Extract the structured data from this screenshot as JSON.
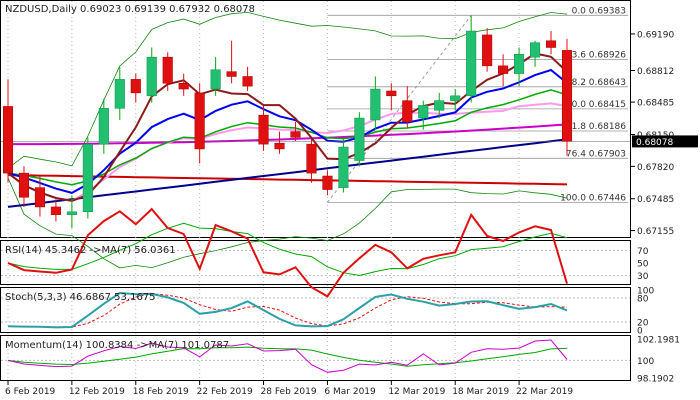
{
  "colors": {
    "up": "#20c070",
    "down": "#e01010",
    "sma_red": "#cc0000",
    "sma_blue": "#00008b",
    "sma_magenta": "#cc00cc",
    "pink": "#ff99ee",
    "bb": "#118811",
    "ema_blue": "#0000ee",
    "ema_green": "#00aa00",
    "brown": "#8b1a1a",
    "teal": "#2aa0a8",
    "grid": "#bbbbbb",
    "fib_line": "#999999",
    "last_box_bg": "#000000",
    "last_box_fg": "#ffffff"
  },
  "main_panel": {
    "header": "NZDUSD,Daily  0.69023 0.69139 0.67932 0.68078",
    "last_price_label": "0.68078",
    "last_price": 0.68078,
    "price_axis_labels": [
      "0.69190",
      "0.68812",
      "0.68485",
      "0.68150",
      "0.67820",
      "0.67485",
      "0.67155"
    ],
    "price_axis_values": [
      0.6919,
      0.68812,
      0.68485,
      0.6815,
      0.6782,
      0.67485,
      0.67155
    ],
    "fib_levels": [
      {
        "label": "0.0 0.69383",
        "price": 0.69383
      },
      {
        "label": "23.6 0.68926",
        "price": 0.68926
      },
      {
        "label": "38.2 0.68643",
        "price": 0.68643
      },
      {
        "label": "50.0 0.68415",
        "price": 0.68415
      },
      {
        "label": "61.8 0.68186",
        "price": 0.68186
      },
      {
        "label": "76.4 0.67903",
        "price": 0.67903
      },
      {
        "label": "100.0 0.67446",
        "price": 0.67446
      }
    ]
  },
  "rsi_panel": {
    "header": "RSI(14) 45.3462  ->MA(7) 56.0361",
    "axis_labels": [
      "70",
      "50",
      "30"
    ],
    "axis_values": [
      70,
      50,
      30
    ]
  },
  "stoch_panel": {
    "header": "Stoch(5,3,3) 46.6867 53.1675",
    "axis_labels": [
      "100",
      "80",
      "20",
      "0"
    ],
    "axis_values": [
      100,
      80,
      20,
      0
    ]
  },
  "momentum_panel": {
    "header": "Momentum(14) 100.8384  ->MA(7) 101.0787",
    "axis_labels": [
      "102.1981",
      "100",
      "98.1902"
    ],
    "axis_values": [
      102.1981,
      100,
      98.1902
    ]
  },
  "x_axis_labels": [
    {
      "label": "6 Feb 2019",
      "index": 0
    },
    {
      "label": "12 Feb 2019",
      "index": 4
    },
    {
      "label": "18 Feb 2019",
      "index": 8
    },
    {
      "label": "22 Feb 2019",
      "index": 12
    },
    {
      "label": "28 Feb 2019",
      "index": 16
    },
    {
      "label": "6 Mar 2019",
      "index": 20
    },
    {
      "label": "12 Mar 2019",
      "index": 24
    },
    {
      "label": "18 Mar 2019",
      "index": 28
    },
    {
      "label": "22 Mar 2019",
      "index": 32
    }
  ],
  "chart_data": {
    "type": "candlestick",
    "symbol": "NZDUSD",
    "timeframe": "Daily",
    "ylim": [
      0.6712,
      0.695
    ],
    "candles": [
      {
        "o": 0.6844,
        "h": 0.6872,
        "l": 0.6765,
        "c": 0.6775
      },
      {
        "o": 0.6775,
        "h": 0.6782,
        "l": 0.674,
        "c": 0.675
      },
      {
        "o": 0.676,
        "h": 0.6772,
        "l": 0.673,
        "c": 0.674
      },
      {
        "o": 0.674,
        "h": 0.6748,
        "l": 0.6725,
        "c": 0.6732
      },
      {
        "o": 0.6732,
        "h": 0.6752,
        "l": 0.6718,
        "c": 0.6735
      },
      {
        "o": 0.6735,
        "h": 0.6812,
        "l": 0.6728,
        "c": 0.6805
      },
      {
        "o": 0.6805,
        "h": 0.6852,
        "l": 0.6795,
        "c": 0.6842
      },
      {
        "o": 0.6842,
        "h": 0.6885,
        "l": 0.683,
        "c": 0.6872
      },
      {
        "o": 0.6872,
        "h": 0.6878,
        "l": 0.6848,
        "c": 0.6858
      },
      {
        "o": 0.6855,
        "h": 0.6905,
        "l": 0.6848,
        "c": 0.6895
      },
      {
        "o": 0.6895,
        "h": 0.69,
        "l": 0.686,
        "c": 0.6868
      },
      {
        "o": 0.6868,
        "h": 0.6878,
        "l": 0.6855,
        "c": 0.6862
      },
      {
        "o": 0.6858,
        "h": 0.6868,
        "l": 0.6785,
        "c": 0.68
      },
      {
        "o": 0.6862,
        "h": 0.6895,
        "l": 0.6855,
        "c": 0.6882
      },
      {
        "o": 0.688,
        "h": 0.6912,
        "l": 0.6868,
        "c": 0.6875
      },
      {
        "o": 0.6875,
        "h": 0.6885,
        "l": 0.686,
        "c": 0.6865
      },
      {
        "o": 0.6835,
        "h": 0.6845,
        "l": 0.6798,
        "c": 0.6805
      },
      {
        "o": 0.6806,
        "h": 0.6818,
        "l": 0.6795,
        "c": 0.68
      },
      {
        "o": 0.6818,
        "h": 0.6828,
        "l": 0.6808,
        "c": 0.6812
      },
      {
        "o": 0.6805,
        "h": 0.681,
        "l": 0.6765,
        "c": 0.6775
      },
      {
        "o": 0.6772,
        "h": 0.6778,
        "l": 0.6752,
        "c": 0.6758
      },
      {
        "o": 0.676,
        "h": 0.681,
        "l": 0.6755,
        "c": 0.6802
      },
      {
        "o": 0.6788,
        "h": 0.6838,
        "l": 0.6782,
        "c": 0.6832
      },
      {
        "o": 0.683,
        "h": 0.6875,
        "l": 0.682,
        "c": 0.6862
      },
      {
        "o": 0.686,
        "h": 0.6868,
        "l": 0.684,
        "c": 0.6855
      },
      {
        "o": 0.685,
        "h": 0.6865,
        "l": 0.6822,
        "c": 0.6828
      },
      {
        "o": 0.6832,
        "h": 0.685,
        "l": 0.682,
        "c": 0.6845
      },
      {
        "o": 0.684,
        "h": 0.6858,
        "l": 0.6832,
        "c": 0.685
      },
      {
        "o": 0.685,
        "h": 0.6862,
        "l": 0.684,
        "c": 0.6855
      },
      {
        "o": 0.6855,
        "h": 0.6938,
        "l": 0.6848,
        "c": 0.6922
      },
      {
        "o": 0.6918,
        "h": 0.6925,
        "l": 0.688,
        "c": 0.6886
      },
      {
        "o": 0.6886,
        "h": 0.6898,
        "l": 0.6865,
        "c": 0.6878
      },
      {
        "o": 0.6878,
        "h": 0.6905,
        "l": 0.6865,
        "c": 0.6898
      },
      {
        "o": 0.6895,
        "h": 0.6912,
        "l": 0.6885,
        "c": 0.691
      },
      {
        "o": 0.6912,
        "h": 0.6922,
        "l": 0.6898,
        "c": 0.6905
      },
      {
        "o": 0.6902,
        "h": 0.6914,
        "l": 0.6793,
        "c": 0.6808
      }
    ]
  }
}
